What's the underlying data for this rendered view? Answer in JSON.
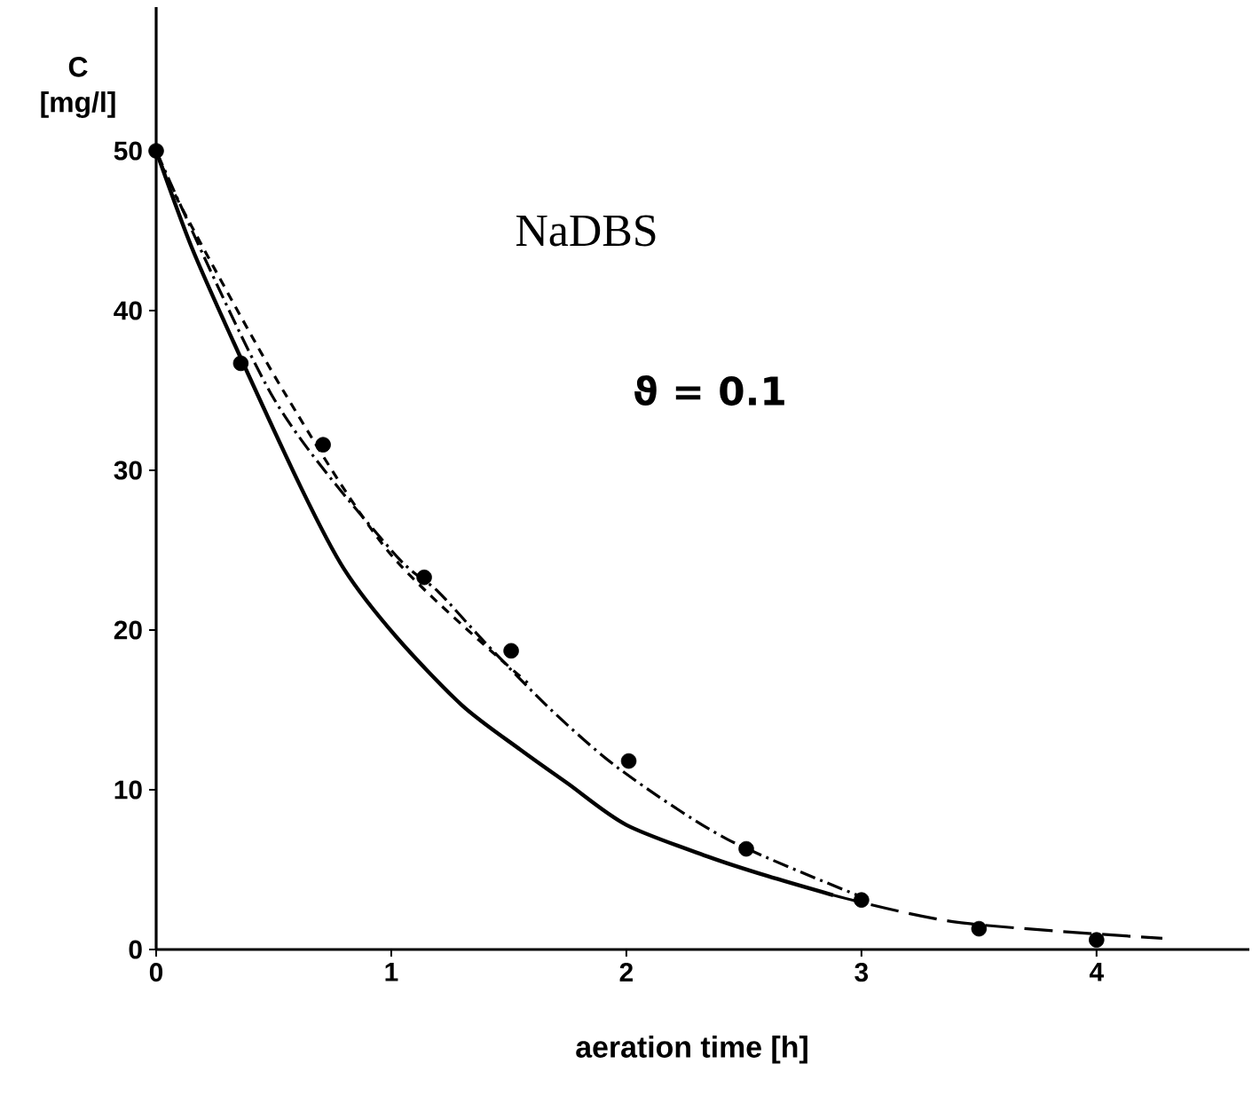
{
  "chart_data": {
    "type": "line",
    "xlabel": "aeration time [h]",
    "ylabel": "C [mg/l]",
    "annotations": [
      "NaDBS",
      "ϑ = 0.1"
    ],
    "xlim": [
      0,
      4.65
    ],
    "ylim": [
      0,
      59
    ],
    "xticks": [
      0,
      1,
      2,
      3,
      4
    ],
    "yticks": [
      0,
      10,
      20,
      30,
      40,
      50
    ],
    "grid": false,
    "series": [
      {
        "type": "scatter",
        "marker": "circle",
        "color": "#000000",
        "x": [
          0,
          0.36,
          0.71,
          1.14,
          1.51,
          2.01,
          2.51,
          3.0,
          3.5,
          4.0
        ],
        "values": [
          50,
          36.7,
          31.6,
          23.3,
          18.7,
          11.8,
          6.3,
          3.1,
          1.3,
          0.6
        ]
      },
      {
        "line_style": "solid",
        "color": "#000000",
        "x": [
          0,
          0.15,
          0.33,
          0.62,
          0.8,
          1.02,
          1.3,
          1.55,
          1.75,
          2.0,
          2.35,
          2.6,
          2.88
        ],
        "values": [
          50,
          44,
          38,
          28.8,
          23.8,
          19.6,
          15.3,
          12.5,
          10.4,
          7.8,
          5.8,
          4.6,
          3.4
        ]
      },
      {
        "line_style": "dashed",
        "color": "#000000",
        "x": [
          0,
          0.11,
          0.54,
          1.0,
          1.58
        ],
        "values": [
          50,
          46.4,
          35,
          24.7,
          16.7
        ]
      },
      {
        "line_style": "dashdot",
        "color": "#000000",
        "x": [
          0,
          0.5,
          1.0,
          1.2,
          1.4,
          1.68,
          1.98,
          2.43,
          3.0
        ],
        "values": [
          50,
          34.5,
          25,
          22.4,
          19.2,
          15,
          11.2,
          6.9,
          3.3
        ]
      },
      {
        "line_style": "loosely dashed",
        "color": "#000000",
        "x": [
          2.88,
          3.41,
          4.28
        ],
        "values": [
          3.4,
          1.7,
          0.7
        ]
      }
    ]
  }
}
